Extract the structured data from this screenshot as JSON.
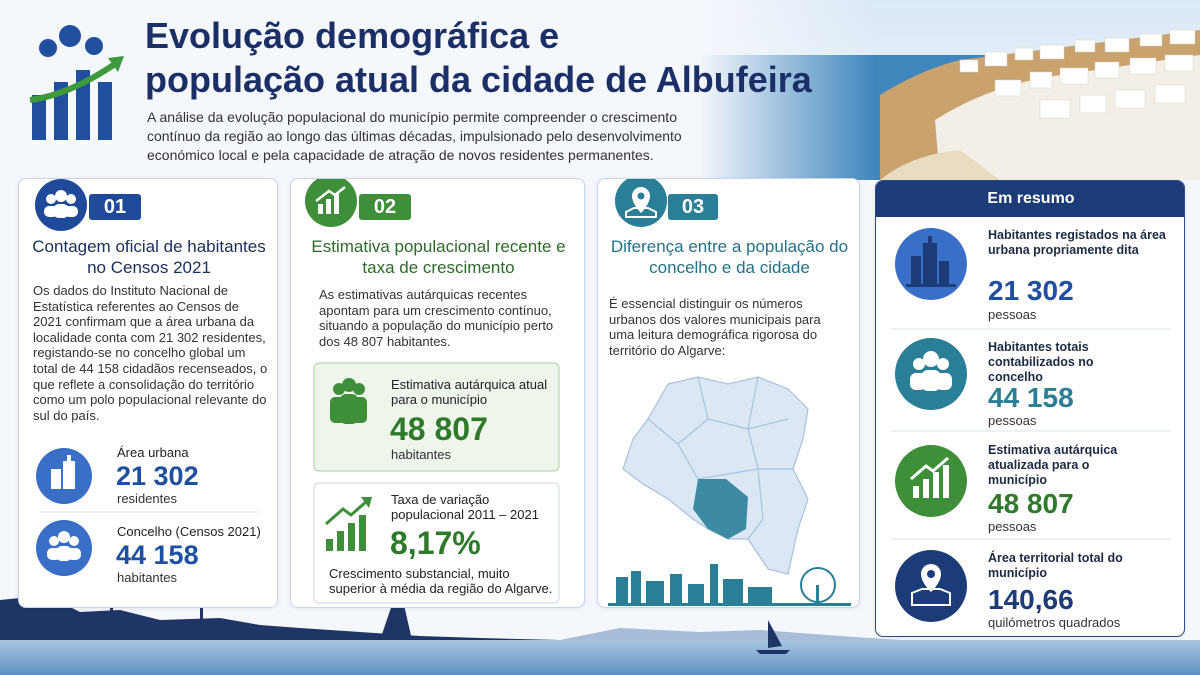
{
  "header": {
    "title_line1": "Evolução demográfica e",
    "title_line2": "população atual da cidade de Albufeira",
    "intro": "A análise da evolução populacional do município permite compreender o crescimento contínuo da região ao longo das últimas décadas, impulsionado pelo desenvolvimento económico local e pela capacidade de atração de novos residentes permanentes."
  },
  "cards": [
    {
      "number": "01",
      "title": "Contagem oficial de habitantes no Censos 2021",
      "text": "Os dados do Instituto Nacional de Estatística referentes ao Censos de 2021 confirmam que a área urbana da localidade conta com 21 302 residentes, registando-se no concelho global um total de 44 158 cidadãos recenseados, o que reflete a consolidação do território como um polo populacional relevante do sul do país.",
      "stats": [
        {
          "label": "Área urbana",
          "value": "21 302",
          "unit": "residentes"
        },
        {
          "label": "Concelho (Censos 2021)",
          "value": "44 158",
          "unit": "habitantes"
        }
      ]
    },
    {
      "number": "02",
      "title": "Estimativa populacional recente e taxa de crescimento",
      "text": "As estimativas autárquicas recentes apontam para um crescimento contínuo, situando a população do município perto dos 48 807 habitantes.",
      "stats": [
        {
          "label": "Estimativa autárquica atual para o município",
          "value": "48 807",
          "unit": "habitantes"
        },
        {
          "label": "Taxa de variação populacional 2011 – 2021",
          "value": "8,17%",
          "note": "Crescimento substancial, muito superior à média da região do Algarve."
        }
      ]
    },
    {
      "number": "03",
      "title": "Diferença entre a população do concelho e da cidade",
      "text": "É essencial distinguir os números urbanos dos valores municipais para uma leitura demográfica rigorosa do território do Algarve:"
    }
  ],
  "summary": {
    "title": "Em resumo",
    "items": [
      {
        "label": "Habitantes registados na área urbana propriamente dita",
        "value": "21 302",
        "unit": "pessoas"
      },
      {
        "label": "Habitantes totais contabilizados no concelho",
        "value": "44 158",
        "unit": "pessoas"
      },
      {
        "label": "Estimativa autárquica atualizada para o município",
        "value": "48 807",
        "unit": "pessoas"
      },
      {
        "label": "Área territorial total do município",
        "value": "140,66",
        "unit": "quilómetros quadrados"
      }
    ]
  }
}
